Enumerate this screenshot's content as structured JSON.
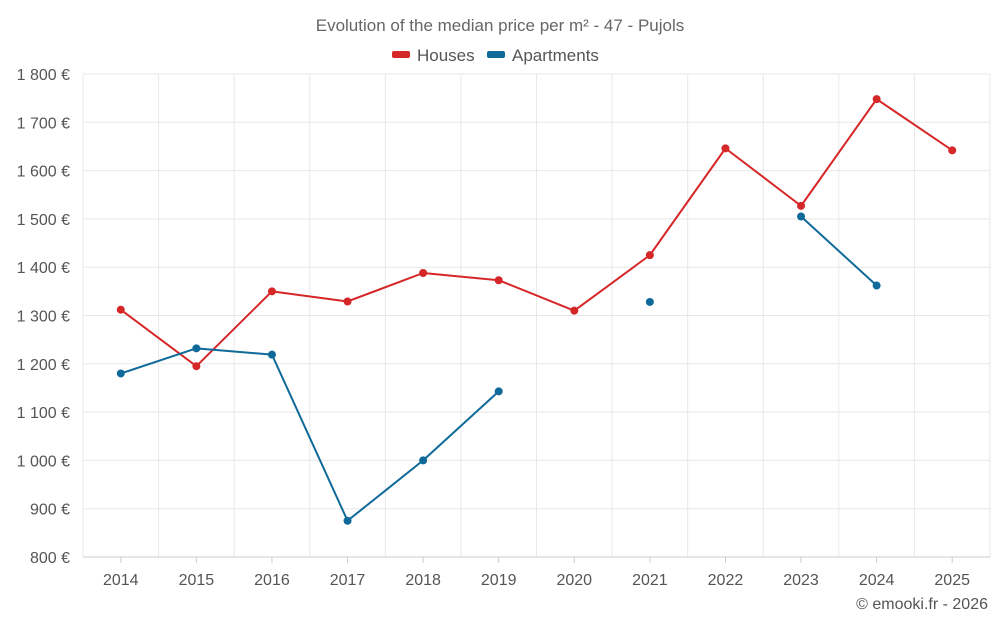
{
  "chart_data": {
    "type": "line",
    "title": "Evolution of the median price per m² - 47 - Pujols",
    "categories": [
      "2014",
      "2015",
      "2016",
      "2017",
      "2018",
      "2019",
      "2020",
      "2021",
      "2022",
      "2023",
      "2024",
      "2025"
    ],
    "series": [
      {
        "name": "Houses",
        "color": "#d62728",
        "values": [
          1312,
          1195,
          1350,
          1329,
          1388,
          1373,
          1310,
          1425,
          1646,
          1527,
          1748,
          1642
        ]
      },
      {
        "name": "Apartments",
        "color": "#0f6a9a",
        "values": [
          1180,
          1232,
          1219,
          875,
          1000,
          1143,
          null,
          1328,
          null,
          1505,
          1362,
          null
        ]
      }
    ],
    "ylim": [
      800,
      1800
    ],
    "yticks": [
      800,
      900,
      1000,
      1100,
      1200,
      1300,
      1400,
      1500,
      1600,
      1700,
      1800
    ],
    "ytick_labels": [
      "800 €",
      "900 €",
      "1 000 €",
      "1 100 €",
      "1 200 €",
      "1 300 €",
      "1 400 €",
      "1 500 €",
      "1 600 €",
      "1 700 €",
      "1 800 €"
    ],
    "xlabel": "",
    "ylabel": "",
    "legend_position": "top-center",
    "grid": true
  },
  "credit": "© emooki.fr - 2026"
}
